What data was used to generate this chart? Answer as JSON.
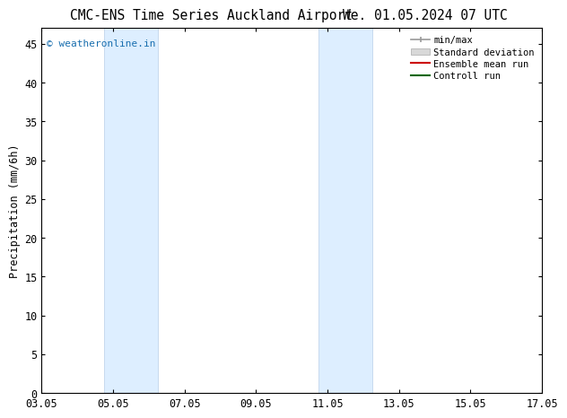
{
  "title_left": "CMC-ENS Time Series Auckland Airport",
  "title_right": "We. 01.05.2024 07 UTC",
  "ylabel": "Precipitation (mm/6h)",
  "xlim_dates": [
    "03.05",
    "05.05",
    "07.05",
    "09.05",
    "11.05",
    "13.05",
    "15.05",
    "17.05"
  ],
  "xlim_min": 0,
  "xlim_max": 14,
  "ylim_min": 0,
  "ylim_max": 47,
  "yticks": [
    0,
    5,
    10,
    15,
    20,
    25,
    30,
    35,
    40,
    45
  ],
  "shaded_bands": [
    {
      "xmin": 1.75,
      "xmax": 3.25
    },
    {
      "xmin": 7.75,
      "xmax": 9.25
    }
  ],
  "shaded_color": "#ddeeff",
  "shaded_edgecolor": "#b8cfe8",
  "background_color": "#ffffff",
  "watermark_text": "© weatheronline.in",
  "watermark_color": "#1a6faf",
  "legend_items": [
    {
      "label": "min/max",
      "color": "#aaaaaa",
      "lw": 1.2
    },
    {
      "label": "Standard deviation",
      "color": "#cccccc",
      "lw": 6
    },
    {
      "label": "Ensemble mean run",
      "color": "#cc0000",
      "lw": 1.2
    },
    {
      "label": "Controll run",
      "color": "#006600",
      "lw": 1.2
    }
  ],
  "tick_label_fontsize": 8.5,
  "title_fontsize": 10.5,
  "ylabel_fontsize": 8.5,
  "legend_fontsize": 7.5
}
